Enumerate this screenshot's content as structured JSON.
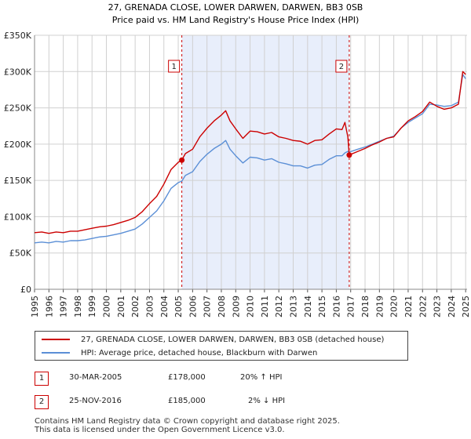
{
  "chart_data": {
    "type": "line",
    "title": "27, GRENADA CLOSE, LOWER DARWEN, DARWEN, BB3 0SB",
    "subtitle": "Price paid vs. HM Land Registry's House Price Index (HPI)",
    "xlabel": "",
    "ylabel": "",
    "xlim": [
      1995,
      2025.1
    ],
    "ylim": [
      0,
      350000
    ],
    "y_ticks": [
      0,
      50000,
      100000,
      150000,
      200000,
      250000,
      300000,
      350000
    ],
    "y_tick_labels": [
      "£0",
      "£50K",
      "£100K",
      "£150K",
      "£200K",
      "£250K",
      "£300K",
      "£350K"
    ],
    "x_ticks": [
      1995,
      1996,
      1997,
      1998,
      1999,
      2000,
      2001,
      2002,
      2003,
      2004,
      2005,
      2006,
      2007,
      2008,
      2009,
      2010,
      2011,
      2012,
      2013,
      2014,
      2015,
      2016,
      2017,
      2018,
      2019,
      2020,
      2021,
      2022,
      2023,
      2024,
      2025
    ],
    "x_tick_labels": [
      "1995",
      "1996",
      "1997",
      "1998",
      "1999",
      "2000",
      "2001",
      "2002",
      "2003",
      "2004",
      "2005",
      "2006",
      "2007",
      "2008",
      "2009",
      "2010",
      "2011",
      "2012",
      "2013",
      "2014",
      "2015",
      "2016",
      "2017",
      "2018",
      "2019",
      "2020",
      "2021",
      "2022",
      "2023",
      "2024",
      "2025"
    ],
    "grid": true,
    "shaded_region": [
      2005.25,
      2016.9
    ],
    "series": [
      {
        "name": "27, GRENADA CLOSE, LOWER DARWEN, DARWEN, BB3 0SB (detached house)",
        "color": "#cc0000",
        "x": [
          1995.0,
          1995.5,
          1996.0,
          1996.5,
          1997.0,
          1997.5,
          1998.0,
          1998.5,
          1999.0,
          1999.5,
          2000.0,
          2000.5,
          2001.0,
          2001.5,
          2002.0,
          2002.5,
          2003.0,
          2003.5,
          2004.0,
          2004.5,
          2005.0,
          2005.25,
          2005.5,
          2006.0,
          2006.5,
          2007.0,
          2007.5,
          2008.0,
          2008.3,
          2008.6,
          2009.0,
          2009.5,
          2010.0,
          2010.5,
          2011.0,
          2011.5,
          2012.0,
          2012.5,
          2013.0,
          2013.5,
          2014.0,
          2014.5,
          2015.0,
          2015.5,
          2016.0,
          2016.4,
          2016.6,
          2016.8,
          2016.9,
          2017.5,
          2018.0,
          2018.5,
          2019.0,
          2019.5,
          2020.0,
          2020.5,
          2021.0,
          2021.5,
          2022.0,
          2022.5,
          2023.0,
          2023.5,
          2024.0,
          2024.5,
          2024.8,
          2025.0
        ],
        "values": [
          78000,
          79000,
          77000,
          79000,
          78000,
          80000,
          80000,
          82000,
          84000,
          86000,
          87000,
          89000,
          92000,
          95000,
          99000,
          107000,
          118000,
          128000,
          145000,
          165000,
          175000,
          178000,
          187000,
          193000,
          210000,
          222000,
          232000,
          240000,
          246000,
          232000,
          221000,
          208000,
          218000,
          217000,
          214000,
          216000,
          210000,
          208000,
          205000,
          204000,
          200000,
          205000,
          206000,
          214000,
          221000,
          220000,
          230000,
          210000,
          185000,
          190000,
          194000,
          199000,
          203000,
          208000,
          210000,
          222000,
          232000,
          238000,
          245000,
          258000,
          252000,
          248000,
          250000,
          255000,
          300000,
          296000
        ]
      },
      {
        "name": "HPI: Average price, detached house, Blackburn with Darwen",
        "color": "#5b8fd6",
        "x": [
          1995.0,
          1995.5,
          1996.0,
          1996.5,
          1997.0,
          1997.5,
          1998.0,
          1998.5,
          1999.0,
          1999.5,
          2000.0,
          2000.5,
          2001.0,
          2001.5,
          2002.0,
          2002.5,
          2003.0,
          2003.5,
          2004.0,
          2004.5,
          2005.0,
          2005.25,
          2005.5,
          2006.0,
          2006.5,
          2007.0,
          2007.5,
          2008.0,
          2008.3,
          2008.6,
          2009.0,
          2009.5,
          2010.0,
          2010.5,
          2011.0,
          2011.5,
          2012.0,
          2012.5,
          2013.0,
          2013.5,
          2014.0,
          2014.5,
          2015.0,
          2015.5,
          2016.0,
          2016.4,
          2016.6,
          2016.8,
          2016.9,
          2017.5,
          2018.0,
          2018.5,
          2019.0,
          2019.5,
          2020.0,
          2020.5,
          2021.0,
          2021.5,
          2022.0,
          2022.5,
          2023.0,
          2023.5,
          2024.0,
          2024.5,
          2024.8,
          2025.0
        ],
        "values": [
          64000,
          65000,
          64000,
          66000,
          65000,
          67000,
          67000,
          68000,
          70000,
          72000,
          73000,
          75000,
          77000,
          80000,
          83000,
          90000,
          99000,
          108000,
          122000,
          139000,
          147000,
          149000,
          157000,
          162000,
          176000,
          186000,
          194000,
          200000,
          205000,
          193000,
          184000,
          174000,
          182000,
          181000,
          178000,
          180000,
          175000,
          173000,
          170000,
          170000,
          167000,
          171000,
          172000,
          179000,
          184000,
          184000,
          188000,
          190000,
          189000,
          193000,
          196000,
          200000,
          204000,
          208000,
          211000,
          222000,
          230000,
          236000,
          242000,
          255000,
          254000,
          252000,
          253000,
          258000,
          296000,
          290000
        ]
      }
    ],
    "sales": [
      {
        "label": "1",
        "x": 2005.25,
        "value": 178000
      },
      {
        "label": "2",
        "x": 2016.9,
        "value": 185000
      }
    ]
  },
  "legend": {
    "red_label": "27, GRENADA CLOSE, LOWER DARWEN, DARWEN, BB3 0SB (detached house)",
    "blue_label": "HPI: Average price, detached house, Blackburn with Darwen",
    "red_color": "#cc0000",
    "blue_color": "#5b8fd6"
  },
  "sales_table": [
    {
      "num": "1",
      "date": "30-MAR-2005",
      "price": "£178,000",
      "hpi": "20% ↑ HPI"
    },
    {
      "num": "2",
      "date": "25-NOV-2016",
      "price": "£185,000",
      "hpi": "2% ↓ HPI"
    }
  ],
  "footer": {
    "line1": "Contains HM Land Registry data © Crown copyright and database right 2025.",
    "line2": "This data is licensed under the Open Government Licence v3.0."
  }
}
